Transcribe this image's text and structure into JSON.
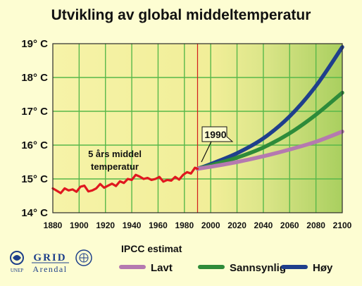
{
  "chart_data": {
    "type": "line",
    "title": "Utvikling av global middeltemperatur",
    "xlim": [
      1880,
      2100
    ],
    "ylim": [
      14,
      19
    ],
    "x_ticks": [
      "1880",
      "1900",
      "1920",
      "1940",
      "1960",
      "1980",
      "2000",
      "2020",
      "2040",
      "2060",
      "2080",
      "2100"
    ],
    "y_ticks": [
      "14° C",
      "15° C",
      "16° C",
      "17° C",
      "18° C",
      "19° C"
    ],
    "grid": true,
    "divider_year": 1990,
    "divider_label": "1990",
    "historical_annotation": [
      "5 års middel",
      "temperatur"
    ],
    "legend_title": "IPCC estimat",
    "legend_placement": "bottom",
    "colors": {
      "historical": "#e0171f",
      "low": "#b579b0",
      "likely": "#2e8b3a",
      "high": "#1f3f8c",
      "divider": "#d21b1b",
      "plot_left": "#f4f1a0",
      "plot_right": "#b6d66b",
      "grid": "#58b84a"
    },
    "historical": {
      "x": [
        1880,
        1883,
        1886,
        1889,
        1892,
        1895,
        1898,
        1901,
        1904,
        1907,
        1910,
        1913,
        1916,
        1919,
        1922,
        1925,
        1928,
        1931,
        1934,
        1937,
        1940,
        1943,
        1946,
        1949,
        1952,
        1955,
        1958,
        1961,
        1964,
        1967,
        1970,
        1973,
        1976,
        1979,
        1982,
        1985,
        1988,
        1990
      ],
      "y": [
        14.72,
        14.65,
        14.58,
        14.72,
        14.66,
        14.69,
        14.62,
        14.77,
        14.8,
        14.63,
        14.66,
        14.72,
        14.85,
        14.74,
        14.8,
        14.86,
        14.79,
        14.93,
        14.88,
        15.0,
        14.97,
        15.12,
        15.07,
        15.0,
        15.03,
        14.97,
        15.0,
        15.06,
        14.92,
        14.97,
        14.95,
        15.06,
        14.98,
        15.12,
        15.2,
        15.16,
        15.33,
        15.3
      ]
    },
    "series": [
      {
        "name": "Lavt",
        "x": [
          1990,
          2000,
          2020,
          2040,
          2060,
          2080,
          2100
        ],
        "y": [
          15.3,
          15.36,
          15.5,
          15.67,
          15.87,
          16.1,
          16.4
        ]
      },
      {
        "name": "Sannsynlig",
        "x": [
          1990,
          2000,
          2020,
          2040,
          2060,
          2080,
          2100
        ],
        "y": [
          15.3,
          15.4,
          15.63,
          15.93,
          16.35,
          16.9,
          17.55
        ]
      },
      {
        "name": "Høy",
        "x": [
          1990,
          2000,
          2020,
          2040,
          2060,
          2080,
          2100
        ],
        "y": [
          15.3,
          15.44,
          15.76,
          16.2,
          16.85,
          17.75,
          18.9
        ]
      }
    ]
  },
  "logos": {
    "unep": "UNEP",
    "grid_top": "GRID",
    "grid_bottom": "Arendal"
  }
}
